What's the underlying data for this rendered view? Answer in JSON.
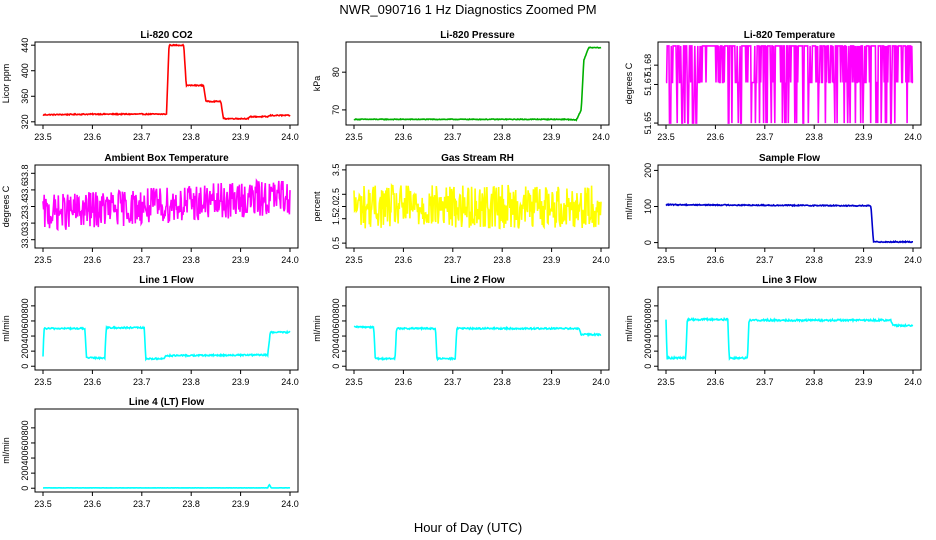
{
  "figure": {
    "title": "NWR_090716  1 Hz Diagnostics Zoomed PM",
    "xlabel": "Hour of Day (UTC)"
  },
  "chart_data": [
    {
      "type": "line",
      "title": "Li-820 CO2",
      "ylabel": "Licor ppm",
      "color": "#ff0000",
      "xlim": [
        23.5,
        24.0
      ],
      "ylim": [
        315,
        445
      ],
      "xticks": [
        "23.5",
        "23.6",
        "23.7",
        "23.8",
        "23.9",
        "24.0"
      ],
      "yticks": [
        {
          "v": 320,
          "label": "320"
        },
        {
          "v": 360,
          "label": "360"
        },
        {
          "v": 400,
          "label": "400"
        },
        {
          "v": 440,
          "label": "440"
        }
      ],
      "x": [
        23.5,
        23.6,
        23.75,
        23.755,
        23.785,
        23.79,
        23.825,
        23.83,
        23.86,
        23.865,
        23.915,
        23.92,
        23.955,
        23.96,
        24.0
      ],
      "y": [
        331,
        332,
        332,
        440,
        440,
        377,
        377,
        352,
        352,
        325,
        325,
        328,
        328,
        330,
        330
      ],
      "noise": 0.8
    },
    {
      "type": "line",
      "title": "Li-820 Pressure",
      "ylabel": "kPa",
      "color": "#00b000",
      "xlim": [
        23.5,
        24.0
      ],
      "ylim": [
        66,
        88
      ],
      "xticks": [
        "23.5",
        "23.6",
        "23.7",
        "23.8",
        "23.9",
        "24.0"
      ],
      "yticks": [
        {
          "v": 70,
          "label": "70"
        },
        {
          "v": 80,
          "label": "80"
        }
      ],
      "x": [
        23.5,
        23.93,
        23.95,
        23.96,
        23.965,
        23.975,
        24.0
      ],
      "y": [
        67.5,
        67.5,
        67.3,
        70,
        83,
        86.5,
        86.5
      ],
      "noise": 0.1
    },
    {
      "type": "line",
      "title": "Li-820 Temperature",
      "ylabel": "degrees C",
      "color": "#ff00ff",
      "xlim": [
        23.5,
        24.0
      ],
      "ylim": [
        51.649,
        51.692
      ],
      "xticks": [
        "23.5",
        "23.6",
        "23.7",
        "23.8",
        "23.9",
        "24.0"
      ],
      "yticks": [
        {
          "v": 51.65,
          "label": "51.65"
        },
        {
          "v": 51.67,
          "label": "51.67"
        },
        {
          "v": 51.68,
          "label": "51.68"
        }
      ],
      "x": [
        23.5,
        24.0
      ],
      "y": [
        51.671,
        51.671
      ],
      "levels": [
        51.65,
        51.671,
        51.69
      ]
    },
    {
      "type": "line",
      "title": "Ambient Box Temperature",
      "ylabel": "degrees C",
      "color": "#ff00ff",
      "xlim": [
        23.5,
        24.0
      ],
      "ylim": [
        32.9,
        33.9
      ],
      "xticks": [
        "23.5",
        "23.6",
        "23.7",
        "23.8",
        "23.9",
        "24.0"
      ],
      "yticks": [
        {
          "v": 33.0,
          "label": "33.0"
        },
        {
          "v": 33.2,
          "label": "33.2"
        },
        {
          "v": 33.4,
          "label": "33.4"
        },
        {
          "v": 33.6,
          "label": "33.6"
        },
        {
          "v": 33.8,
          "label": "33.8"
        }
      ],
      "x": [
        23.5,
        24.0
      ],
      "y": [
        33.32,
        33.52
      ],
      "noise": 0.22
    },
    {
      "type": "line",
      "title": "Gas Stream RH",
      "ylabel": "percent",
      "color": "#ffff00",
      "xlim": [
        23.5,
        24.0
      ],
      "ylim": [
        0.3,
        3.7
      ],
      "xticks": [
        "23.5",
        "23.6",
        "23.7",
        "23.8",
        "23.9",
        "24.0"
      ],
      "yticks": [
        {
          "v": 0.5,
          "label": "0.5"
        },
        {
          "v": 1.5,
          "label": "1.5"
        },
        {
          "v": 2.0,
          "label": "2.0"
        },
        {
          "v": 2.5,
          "label": "2.5"
        },
        {
          "v": 3.5,
          "label": "3.5"
        }
      ],
      "x": [
        23.5,
        24.0
      ],
      "y": [
        2.0,
        2.0
      ],
      "noise": 0.9
    },
    {
      "type": "line",
      "title": "Sample Flow",
      "ylabel": "ml/min",
      "color": "#0000cc",
      "xlim": [
        23.5,
        24.0
      ],
      "ylim": [
        -15,
        215
      ],
      "xticks": [
        "23.5",
        "23.6",
        "23.7",
        "23.8",
        "23.9",
        "24.0"
      ],
      "yticks": [
        {
          "v": 0,
          "label": "0"
        },
        {
          "v": 100,
          "label": "100"
        },
        {
          "v": 200,
          "label": "200"
        }
      ],
      "x": [
        23.5,
        23.91,
        23.915,
        23.92,
        24.0
      ],
      "y": [
        105,
        102,
        100,
        2,
        2
      ],
      "noise": 1.5
    },
    {
      "type": "line",
      "title": "Line 1 Flow",
      "ylabel": "ml/min",
      "color": "#00ffff",
      "xlim": [
        23.5,
        24.0
      ],
      "ylim": [
        -50,
        1050
      ],
      "xticks": [
        "23.5",
        "23.6",
        "23.7",
        "23.8",
        "23.9",
        "24.0"
      ],
      "yticks": [
        {
          "v": 0,
          "label": "0"
        },
        {
          "v": 200,
          "label": "200"
        },
        {
          "v": 400,
          "label": "400"
        },
        {
          "v": 600,
          "label": "600"
        },
        {
          "v": 800,
          "label": "800"
        }
      ],
      "x": [
        23.5,
        23.502,
        23.585,
        23.588,
        23.625,
        23.628,
        23.705,
        23.708,
        23.745,
        23.748,
        23.955,
        23.96,
        24.0
      ],
      "y": [
        120,
        500,
        500,
        110,
        110,
        510,
        510,
        100,
        100,
        140,
        150,
        450,
        450
      ],
      "noise": 10
    },
    {
      "type": "line",
      "title": "Line 2 Flow",
      "ylabel": "ml/min",
      "color": "#00ffff",
      "xlim": [
        23.5,
        24.0
      ],
      "ylim": [
        -50,
        1050
      ],
      "xticks": [
        "23.5",
        "23.6",
        "23.7",
        "23.8",
        "23.9",
        "24.0"
      ],
      "yticks": [
        {
          "v": 0,
          "label": "0"
        },
        {
          "v": 200,
          "label": "200"
        },
        {
          "v": 400,
          "label": "400"
        },
        {
          "v": 600,
          "label": "600"
        },
        {
          "v": 800,
          "label": "800"
        }
      ],
      "x": [
        23.5,
        23.54,
        23.543,
        23.583,
        23.586,
        23.665,
        23.668,
        23.705,
        23.708,
        23.955,
        23.96,
        24.0
      ],
      "y": [
        520,
        520,
        100,
        100,
        500,
        500,
        100,
        100,
        500,
        500,
        420,
        420
      ],
      "noise": 10
    },
    {
      "type": "line",
      "title": "Line 3 Flow",
      "ylabel": "ml/min",
      "color": "#00ffff",
      "xlim": [
        23.5,
        24.0
      ],
      "ylim": [
        -50,
        1050
      ],
      "xticks": [
        "23.5",
        "23.6",
        "23.7",
        "23.8",
        "23.9",
        "24.0"
      ],
      "yticks": [
        {
          "v": 0,
          "label": "0"
        },
        {
          "v": 200,
          "label": "200"
        },
        {
          "v": 400,
          "label": "400"
        },
        {
          "v": 600,
          "label": "600"
        },
        {
          "v": 800,
          "label": "800"
        }
      ],
      "x": [
        23.5,
        23.502,
        23.54,
        23.543,
        23.625,
        23.628,
        23.665,
        23.668,
        23.955,
        23.96,
        24.0
      ],
      "y": [
        630,
        110,
        110,
        620,
        620,
        110,
        110,
        610,
        610,
        540,
        540
      ],
      "noise": 12
    },
    {
      "type": "line",
      "title": "Line 4 (LT) Flow",
      "ylabel": "ml/min",
      "color": "#00ffff",
      "xlim": [
        23.5,
        24.0
      ],
      "ylim": [
        -50,
        1050
      ],
      "xticks": [
        "23.5",
        "23.6",
        "23.7",
        "23.8",
        "23.9",
        "24.0"
      ],
      "yticks": [
        {
          "v": 0,
          "label": "0"
        },
        {
          "v": 200,
          "label": "200"
        },
        {
          "v": 400,
          "label": "400"
        },
        {
          "v": 600,
          "label": "600"
        },
        {
          "v": 800,
          "label": "800"
        }
      ],
      "x": [
        23.5,
        23.955,
        23.958,
        23.962,
        24.0
      ],
      "y": [
        5,
        5,
        50,
        5,
        5
      ],
      "noise": 1
    }
  ]
}
